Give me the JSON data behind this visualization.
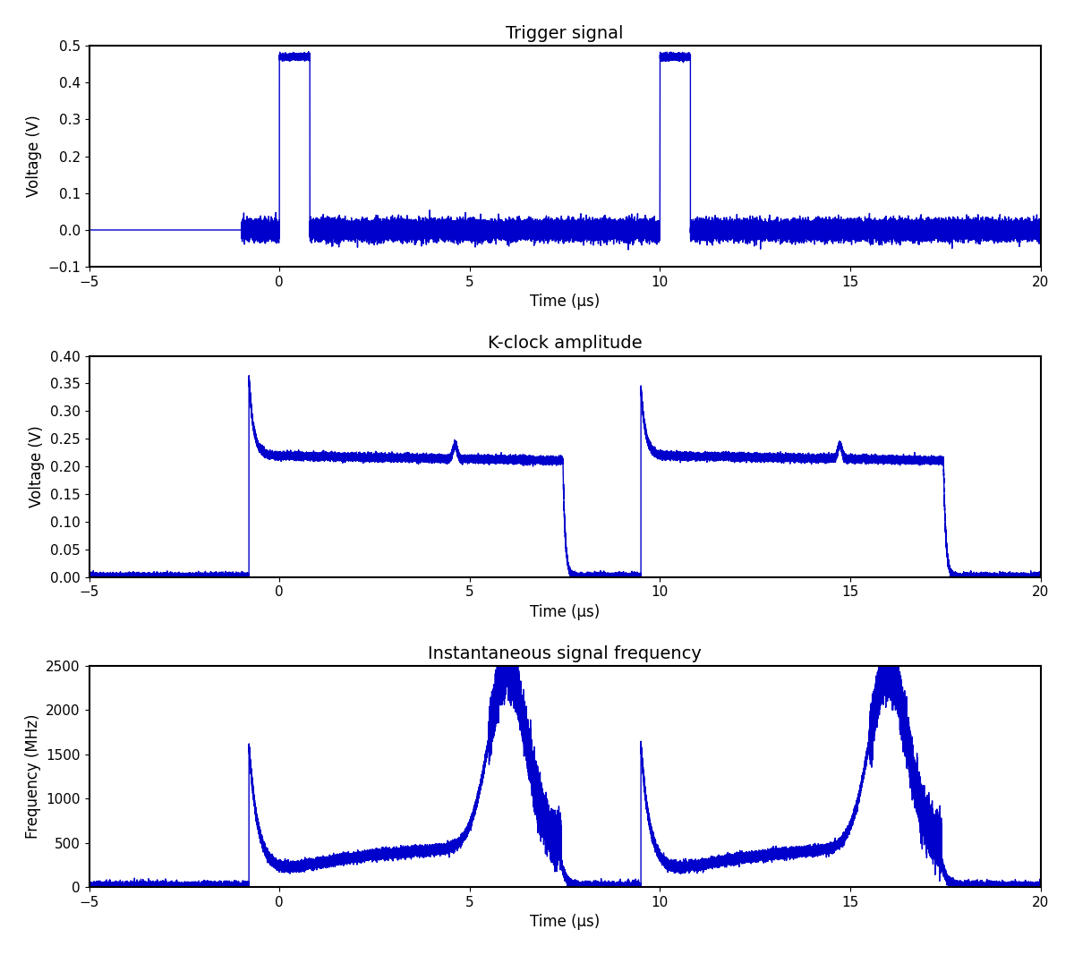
{
  "plot1_title": "Trigger signal",
  "plot2_title": "K-clock amplitude",
  "plot3_title": "Instantaneous signal frequency",
  "xlabel": "Time (μs)",
  "plot1_ylabel": "Voltage (V)",
  "plot2_ylabel": "Voltage (V)",
  "plot3_ylabel": "Frequency (MHz)",
  "xlim": [
    -5,
    20
  ],
  "plot1_ylim": [
    -0.1,
    0.5
  ],
  "plot2_ylim": [
    0.0,
    0.4
  ],
  "plot3_ylim": [
    0,
    2500
  ],
  "plot1_yticks": [
    -0.1,
    0.0,
    0.1,
    0.2,
    0.3,
    0.4,
    0.5
  ],
  "plot2_yticks": [
    0.0,
    0.05,
    0.1,
    0.15,
    0.2,
    0.25,
    0.3,
    0.35,
    0.4
  ],
  "plot3_yticks": [
    0,
    500,
    1000,
    1500,
    2000,
    2500
  ],
  "xticks": [
    -5,
    0,
    5,
    10,
    15,
    20
  ],
  "line_color": "#0000cc",
  "line_width": 1.0,
  "seed": 42
}
